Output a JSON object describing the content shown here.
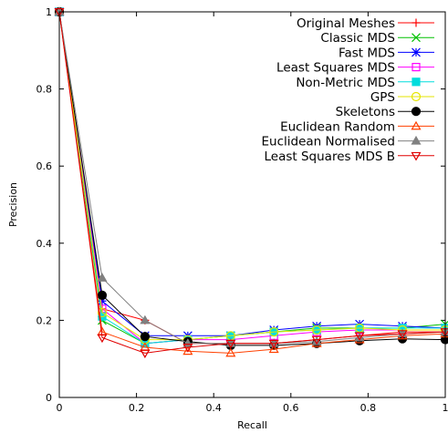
{
  "chart_data": {
    "type": "line",
    "title": "",
    "xlabel": "Recall",
    "ylabel": "Precision",
    "xlim": [
      0,
      1
    ],
    "ylim": [
      0,
      1
    ],
    "grid": false,
    "legend_position": "top-right",
    "x_ticks": [
      "0",
      "0.2",
      "0.4",
      "0.6",
      "0.8",
      "1"
    ],
    "y_ticks": [
      "0",
      "0.2",
      "0.4",
      "0.6",
      "0.8",
      "1"
    ],
    "x": [
      0,
      0.111,
      0.222,
      0.333,
      0.444,
      0.556,
      0.667,
      0.778,
      0.889,
      1.0
    ],
    "series": [
      {
        "name": "Original Meshes",
        "color": "#ff0000",
        "marker": "plus",
        "values": [
          1.0,
          0.23,
          0.2,
          0.14,
          0.14,
          0.14,
          0.15,
          0.16,
          0.17,
          0.17
        ]
      },
      {
        "name": "Classic MDS",
        "color": "#00c000",
        "marker": "cross",
        "values": [
          1.0,
          0.2,
          0.14,
          0.15,
          0.16,
          0.17,
          0.18,
          0.18,
          0.18,
          0.19
        ]
      },
      {
        "name": "Fast MDS",
        "color": "#0000ff",
        "marker": "star",
        "values": [
          1.0,
          0.25,
          0.16,
          0.16,
          0.16,
          0.175,
          0.185,
          0.19,
          0.185,
          0.18
        ]
      },
      {
        "name": "Least Squares MDS",
        "color": "#ff00ff",
        "marker": "square",
        "values": [
          1.0,
          0.23,
          0.14,
          0.15,
          0.15,
          0.16,
          0.17,
          0.175,
          0.175,
          0.175
        ]
      },
      {
        "name": "Non-Metric MDS",
        "color": "#00dddd",
        "marker": "filled-square",
        "values": [
          1.0,
          0.21,
          0.14,
          0.15,
          0.16,
          0.17,
          0.175,
          0.18,
          0.18,
          0.18
        ]
      },
      {
        "name": "GPS",
        "color": "#e6e600",
        "marker": "circle",
        "values": [
          1.0,
          0.22,
          0.15,
          0.15,
          0.16,
          0.17,
          0.175,
          0.18,
          0.175,
          0.175
        ]
      },
      {
        "name": "Skeletons",
        "color": "#000000",
        "marker": "filled-circle",
        "values": [
          1.0,
          0.265,
          0.158,
          0.145,
          0.135,
          0.135,
          0.14,
          0.147,
          0.152,
          0.15
        ]
      },
      {
        "name": "Euclidean Random",
        "color": "#ff4000",
        "marker": "triangle",
        "values": [
          1.0,
          0.17,
          0.13,
          0.12,
          0.115,
          0.125,
          0.14,
          0.15,
          0.16,
          0.165
        ]
      },
      {
        "name": "Euclidean Normalised",
        "color": "#808080",
        "marker": "filled-triangle",
        "values": [
          1.0,
          0.31,
          0.2,
          0.14,
          0.14,
          0.14,
          0.145,
          0.155,
          0.165,
          0.17
        ]
      },
      {
        "name": "Least Squares MDS B",
        "color": "#e00000",
        "marker": "inverted-triangle",
        "values": [
          1.0,
          0.155,
          0.115,
          0.13,
          0.14,
          0.14,
          0.15,
          0.16,
          0.165,
          0.17
        ]
      }
    ]
  }
}
